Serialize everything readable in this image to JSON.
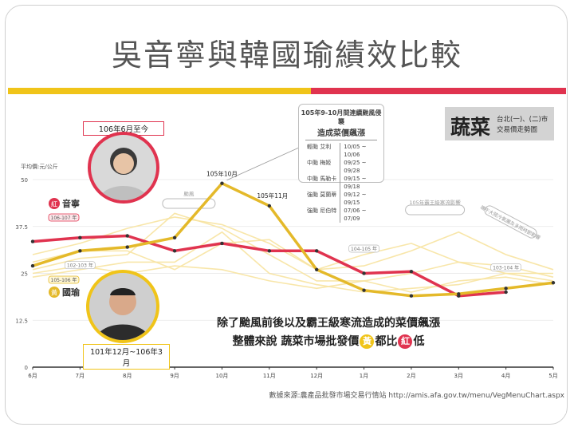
{
  "slide": {
    "title": "吳音寧與韓國瑜績效比較"
  },
  "colors": {
    "red": "#e0334f",
    "yellow": "#f0c419",
    "pale_yellow": "#f7e3a0"
  },
  "tag": {
    "main": "蔬菜",
    "line1": "台北(一)、(二)市",
    "line2": "交易價走勢圖"
  },
  "infobox": {
    "title": "105年9-10月間連續颱風侵襲",
    "subtitle": "造成菜價飆漲",
    "rows": [
      {
        "name": "輕颱 艾利",
        "dates": "10/05 ~ 10/06"
      },
      {
        "name": "中颱 梅姬",
        "dates": "09/25 ~ 09/28"
      },
      {
        "name": "中颱 馬勒卡",
        "dates": "09/15 ~ 09/18"
      },
      {
        "name": "強颱 莫蘭蒂",
        "dates": "09/12 ~ 09/15"
      },
      {
        "name": "強颱 尼伯特",
        "dates": "07/06 ~ 07/09"
      }
    ]
  },
  "periods": {
    "wu": "106年6月至今",
    "han": "101年12月~106年3月"
  },
  "photos": {
    "wu_icon": "person-photo",
    "han_icon": "person-photo"
  },
  "caption": {
    "line1": "除了颱風前後以及霸王級寒流造成的菜價飆漲",
    "line2_prefix": "整體來說 蔬菜市場批發價",
    "yellow_char": "黃",
    "line2_middle": "都比",
    "red_char": "紅",
    "line2_suffix": "低"
  },
  "source": "數據來源:農產品批發市場交易行情站 http://amis.afa.gov.tw/menu/VegMenuChart.aspx",
  "chart_data": {
    "type": "line",
    "ylabel": "平均價:元/公斤",
    "ylim": [
      0,
      50
    ],
    "yticks": [
      "0",
      "12.5",
      "25",
      "37.5",
      "50"
    ],
    "categories": [
      "6月",
      "7月",
      "8月",
      "9月",
      "10月",
      "11月",
      "12月",
      "1月",
      "2月",
      "3月",
      "4月",
      "5月"
    ],
    "series": [
      {
        "name": "音寧",
        "badge": "紅",
        "year_label": "106-107 年",
        "color": "#e0334f",
        "values": [
          33.5,
          34.5,
          35,
          31,
          33,
          31,
          31,
          25,
          25.5,
          19,
          20,
          null
        ]
      },
      {
        "name": "國瑜",
        "badge": "黃",
        "year_label": "105-106 年",
        "color": "#e4b92a",
        "values": [
          27,
          31,
          32,
          34.5,
          49,
          43,
          26,
          20.5,
          19,
          19.5,
          21,
          22.5
        ]
      }
    ],
    "background_series": [
      {
        "label": "102-103 年",
        "values": [
          26,
          29,
          30,
          41,
          37,
          30,
          23,
          23,
          20,
          23,
          24,
          22
        ]
      },
      {
        "label": "104-105 年",
        "values": [
          28,
          31,
          31,
          26,
          33,
          34,
          26,
          30,
          33,
          28,
          25,
          23
        ]
      },
      {
        "label": "103-104 年",
        "values": [
          24,
          26,
          28,
          28,
          36,
          25,
          22,
          20,
          21,
          22,
          25,
          25
        ]
      },
      {
        "label": "",
        "values": [
          30,
          33,
          37,
          40,
          38,
          33,
          26,
          27,
          31,
          36,
          30,
          26
        ]
      },
      {
        "label": "",
        "values": [
          25,
          27,
          25,
          27,
          26,
          23,
          21,
          23,
          25,
          28,
          27,
          24
        ]
      }
    ],
    "annotations": {
      "peak1": "105年10月",
      "peak2": "105年11月",
      "typhoon": "颱風",
      "cold_wave": "105年霸王級寒流影響",
      "rain": "端午大陸冷氣團及多雨時節影響"
    }
  }
}
